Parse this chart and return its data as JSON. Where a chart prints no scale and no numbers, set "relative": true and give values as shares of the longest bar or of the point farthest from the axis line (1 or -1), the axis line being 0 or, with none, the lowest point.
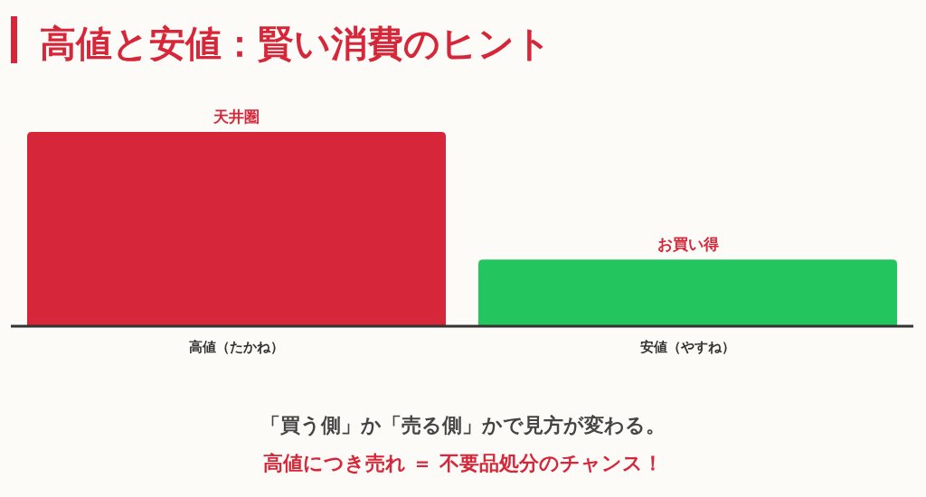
{
  "chart_data": {
    "type": "bar",
    "title": "高値と安値：賢い消費のヒント",
    "categories": [
      "高値（たかね）",
      "安値（やすね）"
    ],
    "values": [
      1,
      0.34
    ],
    "colors": [
      "#d62639",
      "#22c55e"
    ],
    "relative": true,
    "annotations": [
      "天井圏",
      "お買い得",
      "「買う側」か「売る側」かで見方が変わる。",
      "高値につき売れ ＝ 不要品処分のチャンス！"
    ]
  }
}
